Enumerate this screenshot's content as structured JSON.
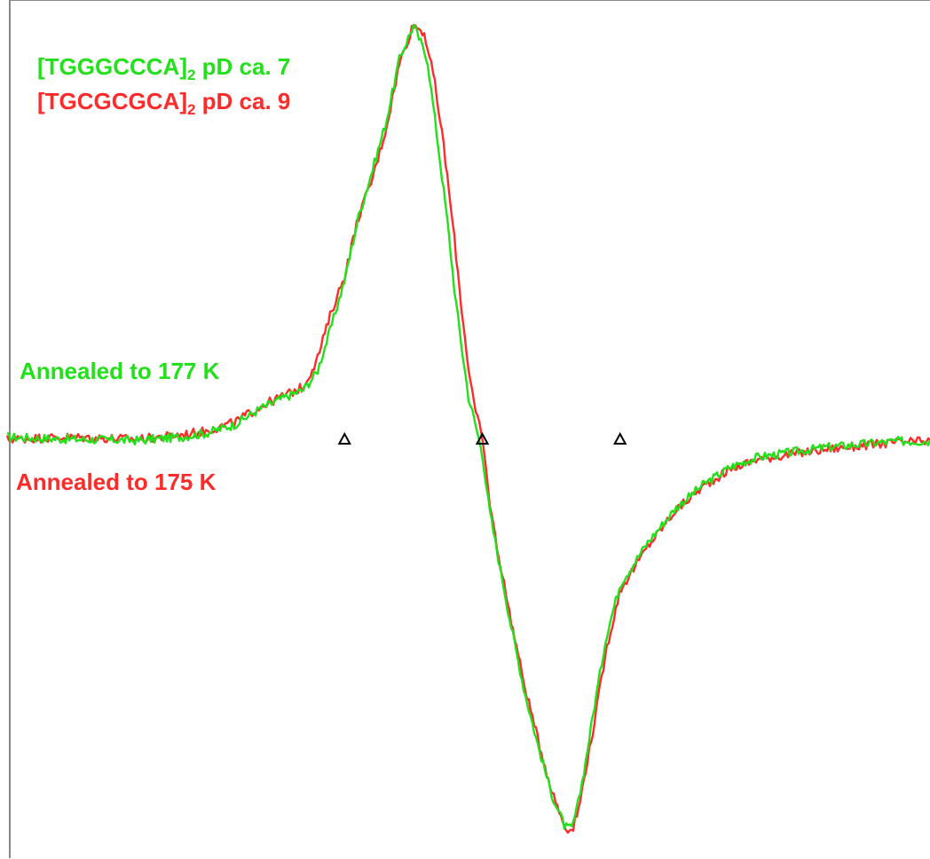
{
  "chart_data": {
    "type": "line",
    "title": "",
    "xlabel": "",
    "ylabel": "",
    "axes_visible": false,
    "grid": false,
    "legend_placement": "top-left",
    "legend": [
      {
        "prefix": "[TGGGCCCA]",
        "subscript": "2",
        "suffix": " pD ca. 7",
        "color": "#22e01a"
      },
      {
        "prefix": "[TGCGCGCA]",
        "subscript": "2",
        "suffix": " pD ca. 9",
        "color": "#ff2a2a"
      }
    ],
    "annotations": [
      {
        "text": "Annealed to 177 K",
        "color": "#22e01a"
      },
      {
        "text": "Annealed to 175 K",
        "color": "#ff2a2a"
      }
    ],
    "markers": {
      "symbol": "triangle",
      "x": [
        -1,
        0,
        1
      ],
      "y": 0
    },
    "xlim": [
      -3.45,
      3.25
    ],
    "ylim": [
      -1.0,
      1.0
    ],
    "series": [
      {
        "color": "#22e01a",
        "noise": 0.011,
        "x": [
          -3.45,
          -3.0,
          -2.5,
          -2.2,
          -2.0,
          -1.8,
          -1.6,
          -1.4,
          -1.3,
          -1.2,
          -1.1,
          -1.0,
          -0.9,
          -0.8,
          -0.7,
          -0.6,
          -0.5,
          -0.4,
          -0.32,
          -0.25,
          -0.2,
          -0.15,
          -0.1,
          -0.05,
          0.0,
          0.05,
          0.1,
          0.15,
          0.2,
          0.3,
          0.4,
          0.5,
          0.6,
          0.65,
          0.7,
          0.75,
          0.8,
          0.9,
          1.0,
          1.2,
          1.4,
          1.6,
          1.8,
          2.0,
          2.5,
          3.0,
          3.25
        ],
        "y": [
          0.005,
          0.0,
          -0.003,
          0.005,
          0.015,
          0.035,
          0.075,
          0.105,
          0.118,
          0.16,
          0.265,
          0.38,
          0.53,
          0.64,
          0.755,
          0.91,
          0.988,
          0.91,
          0.7,
          0.51,
          0.35,
          0.22,
          0.1,
          0.035,
          -0.035,
          -0.175,
          -0.27,
          -0.36,
          -0.455,
          -0.625,
          -0.765,
          -0.89,
          -0.975,
          -0.98,
          -0.91,
          -0.81,
          -0.7,
          -0.495,
          -0.365,
          -0.26,
          -0.175,
          -0.115,
          -0.07,
          -0.045,
          -0.02,
          -0.005,
          -0.005
        ]
      },
      {
        "color": "#ff2a2a",
        "noise": 0.011,
        "x": [
          -3.45,
          -3.0,
          -2.5,
          -2.2,
          -2.0,
          -1.8,
          -1.6,
          -1.4,
          -1.3,
          -1.2,
          -1.1,
          -1.0,
          -0.9,
          -0.8,
          -0.7,
          -0.6,
          -0.5,
          -0.42,
          -0.35,
          -0.28,
          -0.2,
          -0.15,
          -0.1,
          -0.05,
          0.0,
          0.05,
          0.1,
          0.15,
          0.2,
          0.3,
          0.4,
          0.5,
          0.6,
          0.65,
          0.7,
          0.75,
          0.8,
          0.9,
          1.0,
          1.2,
          1.4,
          1.6,
          1.8,
          2.0,
          2.5,
          3.0,
          3.25
        ],
        "y": [
          0.0,
          0.005,
          0.0,
          0.01,
          0.02,
          0.04,
          0.08,
          0.11,
          0.125,
          0.19,
          0.3,
          0.39,
          0.53,
          0.62,
          0.74,
          0.9,
          0.99,
          0.97,
          0.86,
          0.7,
          0.47,
          0.31,
          0.17,
          0.065,
          0.005,
          -0.15,
          -0.26,
          -0.35,
          -0.44,
          -0.61,
          -0.75,
          -0.88,
          -0.975,
          -0.985,
          -0.93,
          -0.83,
          -0.74,
          -0.53,
          -0.38,
          -0.27,
          -0.18,
          -0.12,
          -0.075,
          -0.05,
          -0.025,
          -0.008,
          -0.005
        ]
      }
    ]
  }
}
